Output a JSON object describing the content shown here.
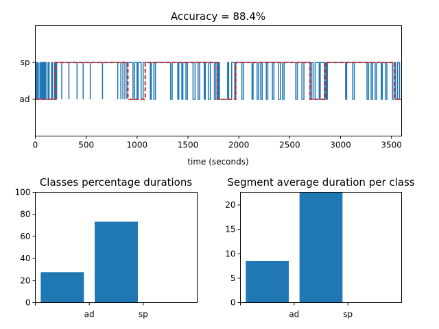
{
  "chart_data": [
    {
      "type": "line",
      "title": "Accuracy = 88.4%",
      "xlabel": "time (seconds)",
      "ylabel": "",
      "xlim": [
        0,
        3600
      ],
      "xticks": [
        0,
        500,
        1000,
        1500,
        2000,
        2500,
        3000,
        3500
      ],
      "xtick_labels": [
        "0",
        "500",
        "1000",
        "1500",
        "2000",
        "2500",
        "3000",
        "3500"
      ],
      "ylim": [
        -1,
        2
      ],
      "yticks": [
        0,
        1
      ],
      "ytick_labels": [
        "ad",
        "sp"
      ],
      "colors": {
        "predicted": "#1f77b4",
        "ground_truth": "#d62728"
      },
      "series": [
        {
          "style": "solid",
          "step_changes": [
            [
              0,
              0
            ],
            [
              10,
              1
            ],
            [
              20,
              0
            ],
            [
              55,
              1
            ],
            [
              65,
              0
            ],
            [
              75,
              1
            ],
            [
              85,
              0
            ],
            [
              95,
              1
            ],
            [
              105,
              0
            ],
            [
              125,
              1
            ],
            [
              135,
              0
            ],
            [
              160,
              1
            ],
            [
              170,
              0
            ],
            [
              190,
              1
            ],
            [
              200,
              0
            ],
            [
              210,
              1
            ],
            [
              960,
              0
            ],
            [
              975,
              1
            ],
            [
              1000,
              0
            ],
            [
              1010,
              1
            ],
            [
              1040,
              0
            ],
            [
              1060,
              1
            ],
            [
              1130,
              0
            ],
            [
              1140,
              1
            ],
            [
              1165,
              0
            ],
            [
              1180,
              1
            ],
            [
              1330,
              0
            ],
            [
              1345,
              1
            ],
            [
              1400,
              0
            ],
            [
              1410,
              1
            ],
            [
              1440,
              0
            ],
            [
              1450,
              1
            ],
            [
              1480,
              0
            ],
            [
              1495,
              1
            ],
            [
              1550,
              0
            ],
            [
              1570,
              1
            ],
            [
              1600,
              0
            ],
            [
              1615,
              1
            ],
            [
              1660,
              0
            ],
            [
              1670,
              1
            ],
            [
              1700,
              0
            ],
            [
              1720,
              1
            ],
            [
              1760,
              0
            ],
            [
              1775,
              1
            ],
            [
              1790,
              0
            ],
            [
              1800,
              1
            ],
            [
              1810,
              0
            ],
            [
              1890,
              1
            ],
            [
              1900,
              0
            ],
            [
              1930,
              1
            ],
            [
              1960,
              0
            ],
            [
              1970,
              1
            ],
            [
              2030,
              0
            ],
            [
              2045,
              1
            ],
            [
              2130,
              0
            ],
            [
              2140,
              1
            ],
            [
              2180,
              0
            ],
            [
              2195,
              1
            ],
            [
              2215,
              0
            ],
            [
              2230,
              1
            ],
            [
              2270,
              0
            ],
            [
              2285,
              1
            ],
            [
              2330,
              0
            ],
            [
              2345,
              1
            ],
            [
              2390,
              0
            ],
            [
              2410,
              1
            ],
            [
              2430,
              0
            ],
            [
              2445,
              1
            ],
            [
              2560,
              0
            ],
            [
              2575,
              1
            ],
            [
              2620,
              0
            ],
            [
              2640,
              1
            ],
            [
              2700,
              0
            ],
            [
              2715,
              1
            ],
            [
              2730,
              0
            ],
            [
              2750,
              1
            ],
            [
              2790,
              0
            ],
            [
              2800,
              1
            ],
            [
              2840,
              0
            ],
            [
              2855,
              1
            ],
            [
              2860,
              0
            ],
            [
              2870,
              1
            ],
            [
              3050,
              0
            ],
            [
              3060,
              1
            ],
            [
              3120,
              0
            ],
            [
              3135,
              1
            ],
            [
              3260,
              0
            ],
            [
              3275,
              1
            ],
            [
              3300,
              0
            ],
            [
              3315,
              1
            ],
            [
              3340,
              0
            ],
            [
              3355,
              1
            ],
            [
              3400,
              0
            ],
            [
              3410,
              1
            ],
            [
              3440,
              0
            ],
            [
              3455,
              1
            ],
            [
              3510,
              0
            ],
            [
              3525,
              1
            ],
            [
              3540,
              0
            ],
            [
              3560,
              1
            ],
            [
              3580,
              0
            ],
            [
              3600,
              0
            ]
          ],
          "spikes": [
            30,
            45,
            260,
            330,
            410,
            470,
            540,
            660,
            810,
            840,
            860,
            880,
            900
          ]
        },
        {
          "style": "dashed",
          "step_changes": [
            [
              0,
              0
            ],
            [
              195,
              1
            ],
            [
              910,
              0
            ],
            [
              1080,
              1
            ],
            [
              1790,
              0
            ],
            [
              1970,
              1
            ],
            [
              2700,
              0
            ],
            [
              2850,
              1
            ],
            [
              3530,
              0
            ],
            [
              3600,
              0
            ]
          ],
          "spikes": []
        }
      ]
    },
    {
      "type": "bar",
      "title": "Classes percentage durations",
      "categories": [
        "ad",
        "sp"
      ],
      "values": [
        27.5,
        73.3
      ],
      "ylim": [
        0,
        100
      ],
      "yticks": [
        0,
        20,
        40,
        60,
        80,
        100
      ],
      "xlabel": "",
      "ylabel": "",
      "color": "#1f77b4"
    },
    {
      "type": "bar",
      "title": "Segment average duration per class",
      "categories": [
        "ad",
        "sp"
      ],
      "values": [
        8.5,
        22.6
      ],
      "ylim": [
        0,
        22.6
      ],
      "yticks": [
        0,
        5,
        10,
        15,
        20
      ],
      "xlabel": "",
      "ylabel": "",
      "color": "#1f77b4"
    }
  ]
}
